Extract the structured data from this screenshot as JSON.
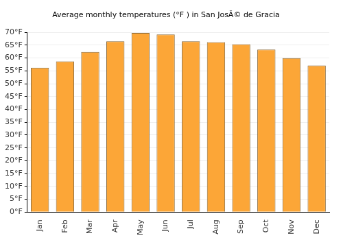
{
  "chart_data": {
    "type": "bar",
    "title": "Average monthly temperatures (°F ) in San JosÃ© de Gracia",
    "categories": [
      "Jan",
      "Feb",
      "Mar",
      "Apr",
      "May",
      "Jun",
      "Jul",
      "Aug",
      "Sep",
      "Oct",
      "Nov",
      "Dec"
    ],
    "values": [
      56.2,
      58.7,
      62.4,
      66.5,
      69.8,
      69.2,
      66.5,
      66.2,
      65.4,
      63.3,
      60.0,
      57.1
    ],
    "color": "#fca637",
    "ylim": [
      0,
      70
    ],
    "yticks": [
      {
        "value": 0,
        "label": "0°F"
      },
      {
        "value": 5,
        "label": "5°F"
      },
      {
        "value": 10,
        "label": "10°F"
      },
      {
        "value": 15,
        "label": "15°F"
      },
      {
        "value": 20,
        "label": "20°F"
      },
      {
        "value": 25,
        "label": "25°F"
      },
      {
        "value": 30,
        "label": "30°F"
      },
      {
        "value": 35,
        "label": "35°F"
      },
      {
        "value": 40,
        "label": "40°F"
      },
      {
        "value": 45,
        "label": "45°F"
      },
      {
        "value": 50,
        "label": "50°F"
      },
      {
        "value": 55,
        "label": "55°F"
      },
      {
        "value": 60,
        "label": "60°F"
      },
      {
        "value": 65,
        "label": "65°F"
      },
      {
        "value": 70,
        "label": "70°F"
      }
    ],
    "grid": true
  }
}
